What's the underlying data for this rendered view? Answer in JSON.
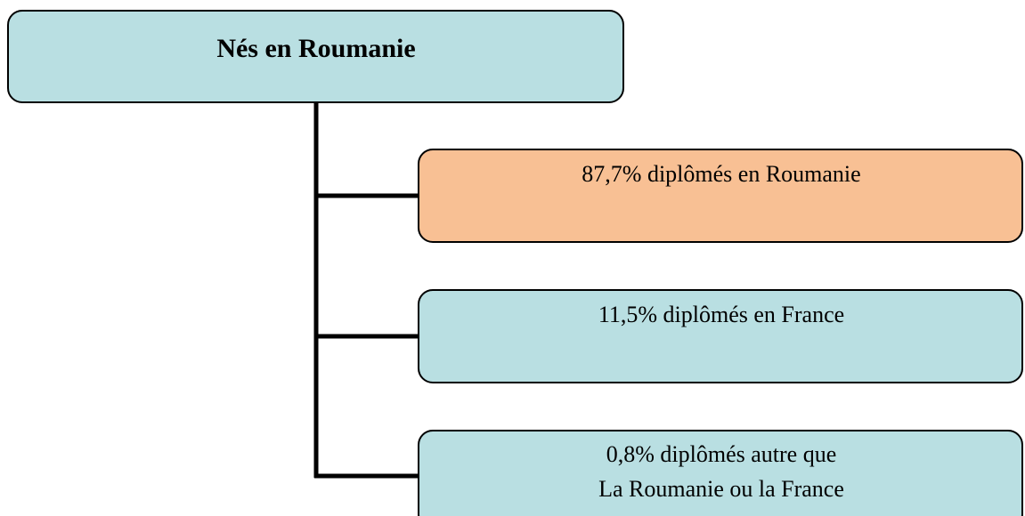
{
  "nodes": [
    {
      "label": "Nés en Roumanie"
    },
    {
      "label": "87,7% diplômés en Roumanie"
    },
    {
      "label": "11,5% diplômés en France"
    },
    {
      "lines": [
        "0,8% diplômés autre que",
        "La Roumanie ou la France"
      ]
    }
  ]
}
